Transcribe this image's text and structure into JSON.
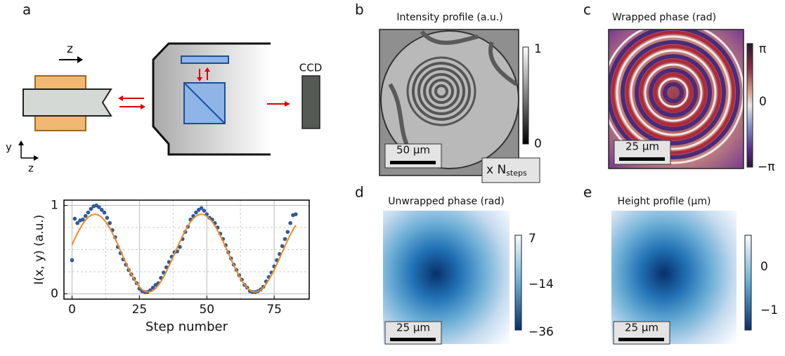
{
  "panels": {
    "a": {
      "label": "a",
      "z_label": "z",
      "y_axis": "y",
      "z_axis": "z",
      "ccd": "CCD"
    },
    "b": {
      "label": "b",
      "title": "Intensity profile (a.u.)",
      "colorbar_labels": [
        "1",
        "0"
      ],
      "scale_bar": "50 µm",
      "steps_prefix": "x N",
      "steps_sub": "steps"
    },
    "c": {
      "label": "c",
      "title": "Wrapped phase (rad)",
      "colorbar_labels": [
        "π",
        "0",
        "−π"
      ],
      "scale_bar": "25 µm"
    },
    "d": {
      "label": "d",
      "title": "Unwrapped phase (rad)",
      "colorbar_labels": [
        "7",
        "−14",
        "−36"
      ],
      "scale_bar": "25 µm"
    },
    "e": {
      "label": "e",
      "title": "Height profile (µm)",
      "colorbar_labels": [
        "0",
        "−1"
      ],
      "scale_bar": "25 µm"
    }
  },
  "chart_data": {
    "type": "scatter",
    "x_label": "Step number",
    "y_label": "I(x, y) (a.u.)",
    "x": [
      0,
      1,
      2,
      3,
      4,
      5,
      6,
      7,
      8,
      9,
      10,
      11,
      12,
      13,
      14,
      15,
      16,
      17,
      18,
      19,
      20,
      21,
      22,
      23,
      24,
      25,
      26,
      27,
      28,
      29,
      30,
      31,
      32,
      33,
      34,
      35,
      36,
      37,
      38,
      39,
      40,
      41,
      42,
      43,
      44,
      45,
      46,
      47,
      48,
      49,
      50,
      51,
      52,
      53,
      54,
      55,
      56,
      57,
      58,
      59,
      60,
      61,
      62,
      63,
      64,
      65,
      66,
      67,
      68,
      69,
      70,
      71,
      72,
      73,
      74,
      75,
      76,
      77,
      78,
      79,
      80,
      81,
      82,
      83
    ],
    "series": [
      {
        "kind": "scatter",
        "color": "#2d5a9a",
        "values": [
          0.38,
          0.85,
          0.8,
          0.83,
          0.84,
          0.88,
          0.92,
          0.96,
          0.99,
          1.0,
          0.98,
          0.95,
          0.92,
          0.86,
          0.8,
          0.72,
          0.64,
          0.53,
          0.46,
          0.39,
          0.33,
          0.27,
          0.22,
          0.17,
          0.12,
          0.06,
          0.03,
          0.02,
          0.02,
          0.04,
          0.07,
          0.1,
          0.12,
          0.18,
          0.24,
          0.3,
          0.36,
          0.42,
          0.47,
          0.48,
          0.53,
          0.62,
          0.7,
          0.76,
          0.84,
          0.88,
          0.92,
          0.95,
          0.97,
          0.94,
          0.9,
          0.86,
          0.84,
          0.8,
          0.75,
          0.68,
          0.62,
          0.55,
          0.47,
          0.4,
          0.33,
          0.27,
          0.21,
          0.16,
          0.1,
          0.07,
          0.03,
          0.02,
          0.02,
          0.03,
          0.05,
          0.08,
          0.14,
          0.19,
          0.24,
          0.31,
          0.38,
          0.45,
          0.54,
          0.62,
          0.7,
          0.8,
          0.89,
          0.9
        ]
      },
      {
        "kind": "line",
        "color": "#f28a1e",
        "values": [
          0.555,
          0.622,
          0.685,
          0.742,
          0.792,
          0.834,
          0.866,
          0.888,
          0.899,
          0.899,
          0.888,
          0.866,
          0.834,
          0.792,
          0.742,
          0.685,
          0.622,
          0.555,
          0.486,
          0.416,
          0.348,
          0.282,
          0.22,
          0.165,
          0.117,
          0.077,
          0.047,
          0.028,
          0.021,
          0.023,
          0.036,
          0.061,
          0.096,
          0.14,
          0.193,
          0.252,
          0.316,
          0.382,
          0.451,
          0.521,
          0.588,
          0.654,
          0.715,
          0.768,
          0.815,
          0.852,
          0.879,
          0.896,
          0.9,
          0.894,
          0.878,
          0.851,
          0.815,
          0.769,
          0.717,
          0.658,
          0.595,
          0.528,
          0.46,
          0.391,
          0.324,
          0.261,
          0.203,
          0.15,
          0.104,
          0.068,
          0.04,
          0.024,
          0.02,
          0.027,
          0.045,
          0.073,
          0.112,
          0.158,
          0.212,
          0.272,
          0.336,
          0.403,
          0.471,
          0.54,
          0.606,
          0.668,
          0.725,
          0.775
        ]
      }
    ],
    "xlim": [
      -3,
      88
    ],
    "ylim": [
      -0.06,
      1.06
    ],
    "xticks": [
      0,
      25,
      50,
      75
    ],
    "yticks": [
      0,
      1
    ],
    "minor_xticks": [
      12.5,
      37.5,
      62.5
    ],
    "minor_yticks": [
      0.25,
      0.5,
      0.75
    ],
    "grid": true
  }
}
